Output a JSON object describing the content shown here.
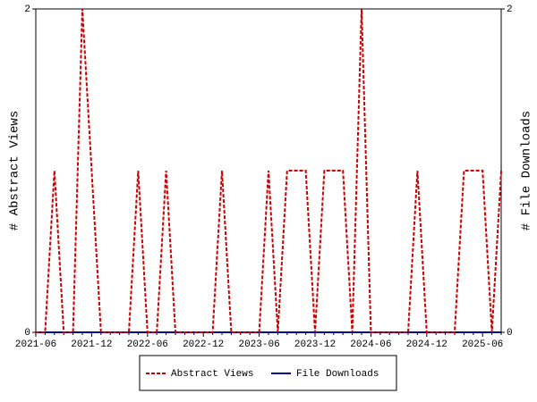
{
  "chart_data": {
    "type": "line",
    "categories": [
      "2021-06",
      null,
      null,
      null,
      null,
      null,
      "2021-12",
      null,
      null,
      null,
      null,
      null,
      "2022-06",
      null,
      null,
      null,
      null,
      null,
      "2022-12",
      null,
      null,
      null,
      null,
      null,
      "2023-06",
      null,
      null,
      null,
      null,
      null,
      "2023-12",
      null,
      null,
      null,
      null,
      null,
      "2024-06",
      null,
      null,
      null,
      null,
      null,
      "2024-12",
      null,
      null,
      null,
      null,
      null,
      "2025-06",
      null,
      null
    ],
    "y_label": "# Abstract Views",
    "y2_label": "# File Downloads",
    "ylim": [
      0,
      2
    ],
    "yticks": [
      0,
      2
    ],
    "y2lim": [
      0,
      2
    ],
    "y2ticks": [
      0,
      2
    ],
    "legend": "bottom",
    "series": [
      {
        "name": "Abstract Views",
        "color": "#cc0000",
        "dash": true,
        "values": [
          0,
          0,
          1,
          0,
          0,
          2,
          1,
          0,
          0,
          0,
          0,
          1,
          0,
          0,
          1,
          0,
          0,
          0,
          0,
          0,
          1,
          0,
          0,
          0,
          0,
          1,
          0,
          1,
          1,
          1,
          0,
          1,
          1,
          1,
          0,
          2,
          0,
          0,
          0,
          0,
          0,
          1,
          0,
          0,
          0,
          0,
          1,
          1,
          1,
          0,
          1
        ]
      },
      {
        "name": "File Downloads",
        "color": "#000099",
        "dash": false,
        "axis": "y2",
        "values": [
          0,
          0,
          0,
          0,
          0,
          0,
          0,
          0,
          0,
          0,
          0,
          0,
          0,
          0,
          0,
          0,
          0,
          0,
          0,
          0,
          0,
          0,
          0,
          0,
          0,
          0,
          0,
          0,
          0,
          0,
          0,
          0,
          0,
          0,
          0,
          0,
          0,
          0,
          0,
          0,
          0,
          0,
          0,
          0,
          0,
          0,
          0,
          0,
          0,
          0,
          0
        ]
      }
    ]
  }
}
